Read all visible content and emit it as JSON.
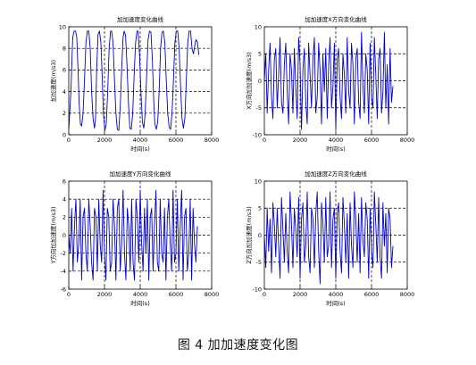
{
  "caption": "图 4  加加速度变化图",
  "chart_data": [
    {
      "type": "line",
      "title": "加加速度变化曲线",
      "xlabel": "时间(s)",
      "ylabel": "加加速度(m/s3)",
      "xlim": [
        0,
        8000
      ],
      "ylim": [
        0,
        10
      ],
      "xticks": [
        0,
        2000,
        4000,
        6000,
        8000
      ],
      "yticks": [
        0,
        2,
        4,
        6,
        8,
        10
      ],
      "grid": "dashed",
      "series": [
        {
          "color": "#0000cc",
          "x": [
            0,
            120,
            220,
            300,
            380,
            450,
            520,
            580,
            650,
            720,
            800,
            880,
            960,
            1040,
            1120,
            1200,
            1280,
            1360,
            1440,
            1500,
            1560,
            1640,
            1720,
            1800,
            1880,
            1940,
            2020,
            2100,
            2180,
            2260,
            2340,
            2400,
            2480,
            2560,
            2640,
            2720,
            2800,
            2880,
            2960,
            3040,
            3100,
            3180,
            3260,
            3340,
            3420,
            3500,
            3580,
            3660,
            3740,
            3820,
            3880,
            3960,
            4040,
            4120,
            4200,
            4280,
            4360,
            4440,
            4520,
            4600,
            4680,
            4760,
            4820,
            4900,
            4980,
            5060,
            5140,
            5220,
            5300,
            5380,
            5460,
            5540,
            5620,
            5700,
            5780,
            5860,
            5940,
            6020,
            6100,
            6180,
            6260,
            6340,
            6420,
            6500,
            6580,
            6660,
            6740,
            6820,
            6900,
            6980,
            7060,
            7120,
            7200,
            7280
          ],
          "y": [
            0.5,
            4,
            9,
            9.6,
            9.6,
            9,
            6,
            3,
            1,
            0.8,
            2,
            5,
            8.5,
            9.6,
            9.6,
            8,
            4,
            1.5,
            0.6,
            1.5,
            6,
            9.3,
            9.6,
            8.5,
            5,
            2,
            0.4,
            1,
            4,
            8,
            9.6,
            9.6,
            8.5,
            5,
            2,
            0.5,
            0.4,
            2.5,
            6,
            9,
            9.6,
            9.2,
            6.5,
            3,
            0.6,
            0.5,
            2,
            5.5,
            8.5,
            9.6,
            9.6,
            7.5,
            4,
            1.2,
            0.6,
            2,
            5.5,
            8.8,
            9.6,
            9.5,
            7,
            3,
            1,
            0.5,
            1.2,
            4,
            8,
            9.5,
            9.6,
            8.5,
            5,
            2,
            0.7,
            0.5,
            2,
            5,
            8.5,
            9.6,
            9.6,
            8,
            4.5,
            1.5,
            0.6,
            1.5,
            5,
            8.5,
            9.6,
            9.6,
            8,
            7.5,
            8.3,
            8.8,
            8.6,
            7.4
          ]
        }
      ]
    },
    {
      "type": "line",
      "title": "加加速度X方向变化曲线",
      "xlabel": "时间(s)",
      "ylabel": "X方向加加速度(m/s3)",
      "xlim": [
        0,
        8000
      ],
      "ylim": [
        -10,
        10
      ],
      "xticks": [
        0,
        2000,
        4000,
        6000,
        8000
      ],
      "yticks": [
        -10,
        -5,
        0,
        5,
        10
      ],
      "grid": "dashed",
      "series": [
        {
          "color": "#0000cc",
          "x": [
            0,
            80,
            160,
            240,
            320,
            400,
            480,
            560,
            640,
            720,
            800,
            880,
            960,
            1040,
            1120,
            1200,
            1280,
            1360,
            1440,
            1520,
            1600,
            1680,
            1760,
            1840,
            1920,
            2000,
            2080,
            2160,
            2240,
            2320,
            2400,
            2480,
            2560,
            2640,
            2720,
            2800,
            2880,
            2960,
            3040,
            3120,
            3200,
            3280,
            3360,
            3440,
            3520,
            3600,
            3680,
            3760,
            3840,
            3920,
            4000,
            4080,
            4160,
            4240,
            4320,
            4400,
            4480,
            4560,
            4640,
            4720,
            4800,
            4880,
            4960,
            5040,
            5120,
            5200,
            5280,
            5360,
            5440,
            5520,
            5600,
            5680,
            5760,
            5840,
            5920,
            6000,
            6080,
            6160,
            6240,
            6320,
            6400,
            6480,
            6560,
            6640,
            6720,
            6800,
            6880,
            6960,
            7040,
            7120,
            7200
          ],
          "y": [
            0,
            5,
            -6,
            2,
            7,
            -3,
            -7,
            4,
            6,
            -5,
            1,
            8,
            -4,
            -6,
            3,
            7,
            -2,
            -8,
            5,
            2,
            -6,
            6,
            -1,
            -7,
            8,
            3,
            -9,
            2,
            6,
            -4,
            -8,
            7,
            1,
            -5,
            4,
            8,
            -6,
            -3,
            7,
            2,
            -8,
            5,
            -2,
            6,
            -7,
            3,
            8,
            -5,
            -1,
            7,
            -9,
            4,
            6,
            -3,
            -7,
            5,
            1,
            -6,
            8,
            -2,
            -5,
            7,
            3,
            -8,
            4,
            6,
            -4,
            -7,
            9,
            -1,
            -6,
            5,
            2,
            -8,
            7,
            -3,
            -5,
            8,
            1,
            -7,
            4,
            6,
            -6,
            -2,
            9,
            -5,
            3,
            -8,
            6,
            -4,
            -1
          ]
        }
      ]
    },
    {
      "type": "line",
      "title": "加加速度Y方向变化曲线",
      "xlabel": "时间(s)",
      "ylabel": "Y方向加加速度(m/s3)",
      "xlim": [
        0,
        8000
      ],
      "ylim": [
        -6,
        6
      ],
      "xticks": [
        0,
        2000,
        4000,
        6000,
        8000
      ],
      "yticks": [
        -6,
        -4,
        -2,
        0,
        2,
        4,
        6
      ],
      "grid": "dashed",
      "series": [
        {
          "color": "#0000cc",
          "x": [
            0,
            80,
            160,
            240,
            320,
            400,
            480,
            560,
            640,
            720,
            800,
            880,
            960,
            1040,
            1120,
            1200,
            1280,
            1360,
            1440,
            1520,
            1600,
            1680,
            1760,
            1840,
            1920,
            2000,
            2080,
            2160,
            2240,
            2320,
            2400,
            2480,
            2560,
            2640,
            2720,
            2800,
            2880,
            2960,
            3040,
            3120,
            3200,
            3280,
            3360,
            3440,
            3520,
            3600,
            3680,
            3760,
            3840,
            3920,
            4000,
            4080,
            4160,
            4240,
            4320,
            4400,
            4480,
            4560,
            4640,
            4720,
            4800,
            4880,
            4960,
            5040,
            5120,
            5200,
            5280,
            5360,
            5440,
            5520,
            5600,
            5680,
            5760,
            5840,
            5920,
            6000,
            6080,
            6160,
            6240,
            6320,
            6400,
            6480,
            6560,
            6640,
            6720,
            6800,
            6880,
            6960,
            7040,
            7120,
            7200
          ],
          "y": [
            0,
            -2,
            3,
            -4,
            1,
            4,
            -3,
            -1,
            4,
            -5,
            2,
            3,
            -2,
            -4,
            4,
            1,
            -3,
            -5,
            3,
            2,
            -4,
            4,
            -1,
            -3,
            5,
            -2,
            -5,
            3,
            2,
            -4,
            -3,
            4,
            1,
            -5,
            3,
            4,
            -4,
            -1,
            5,
            -2,
            -5,
            3,
            1,
            -4,
            4,
            -3,
            -5,
            4,
            2,
            -3,
            5,
            -1,
            -4,
            3,
            -2,
            4,
            -5,
            2,
            3,
            -4,
            1,
            5,
            -3,
            -4,
            4,
            -2,
            -3,
            3,
            -5,
            2,
            4,
            -1,
            -4,
            5,
            -3,
            -2,
            4,
            -4,
            1,
            5,
            -5,
            2,
            3,
            -4,
            -2,
            4,
            -5,
            3,
            -1,
            -3,
            1
          ]
        }
      ]
    },
    {
      "type": "line",
      "title": "加加速度Z方向变化曲线",
      "xlabel": "时间(s)",
      "ylabel": "Z方向加加速度(m/s3)",
      "xlim": [
        0,
        8000
      ],
      "ylim": [
        -10,
        10
      ],
      "xticks": [
        0,
        2000,
        4000,
        6000,
        8000
      ],
      "yticks": [
        -10,
        -5,
        0,
        5,
        10
      ],
      "grid": "dashed",
      "series": [
        {
          "color": "#0000cc",
          "x": [
            0,
            80,
            160,
            240,
            320,
            400,
            480,
            560,
            640,
            720,
            800,
            880,
            960,
            1040,
            1120,
            1200,
            1280,
            1360,
            1440,
            1520,
            1600,
            1680,
            1760,
            1840,
            1920,
            2000,
            2080,
            2160,
            2240,
            2320,
            2400,
            2480,
            2560,
            2640,
            2720,
            2800,
            2880,
            2960,
            3040,
            3120,
            3200,
            3280,
            3360,
            3440,
            3520,
            3600,
            3680,
            3760,
            3840,
            3920,
            4000,
            4080,
            4160,
            4240,
            4320,
            4400,
            4480,
            4560,
            4640,
            4720,
            4800,
            4880,
            4960,
            5040,
            5120,
            5200,
            5280,
            5360,
            5440,
            5520,
            5600,
            5680,
            5760,
            5840,
            5920,
            6000,
            6080,
            6160,
            6240,
            6320,
            6400,
            6480,
            6560,
            6640,
            6720,
            6800,
            6880,
            6960,
            7040,
            7120,
            7200
          ],
          "y": [
            0,
            -6,
            5,
            -3,
            3,
            -7,
            6,
            2,
            -4,
            5,
            -2,
            -8,
            7,
            1,
            -5,
            4,
            -3,
            -7,
            8,
            2,
            -6,
            5,
            1,
            -4,
            7,
            -8,
            3,
            6,
            -5,
            -2,
            8,
            -4,
            -7,
            5,
            3,
            -6,
            4,
            8,
            -3,
            -9,
            6,
            2,
            -5,
            7,
            -4,
            -2,
            8,
            -6,
            3,
            5,
            -8,
            4,
            6,
            -3,
            -7,
            7,
            2,
            -5,
            4,
            -8,
            6,
            -2,
            -6,
            8,
            3,
            -5,
            4,
            -7,
            7,
            -1,
            -4,
            6,
            3,
            -8,
            5,
            -3,
            -6,
            8,
            2,
            -5,
            7,
            -4,
            -8,
            6,
            -2,
            4,
            -7,
            5,
            3,
            -6,
            -2
          ]
        }
      ]
    }
  ]
}
